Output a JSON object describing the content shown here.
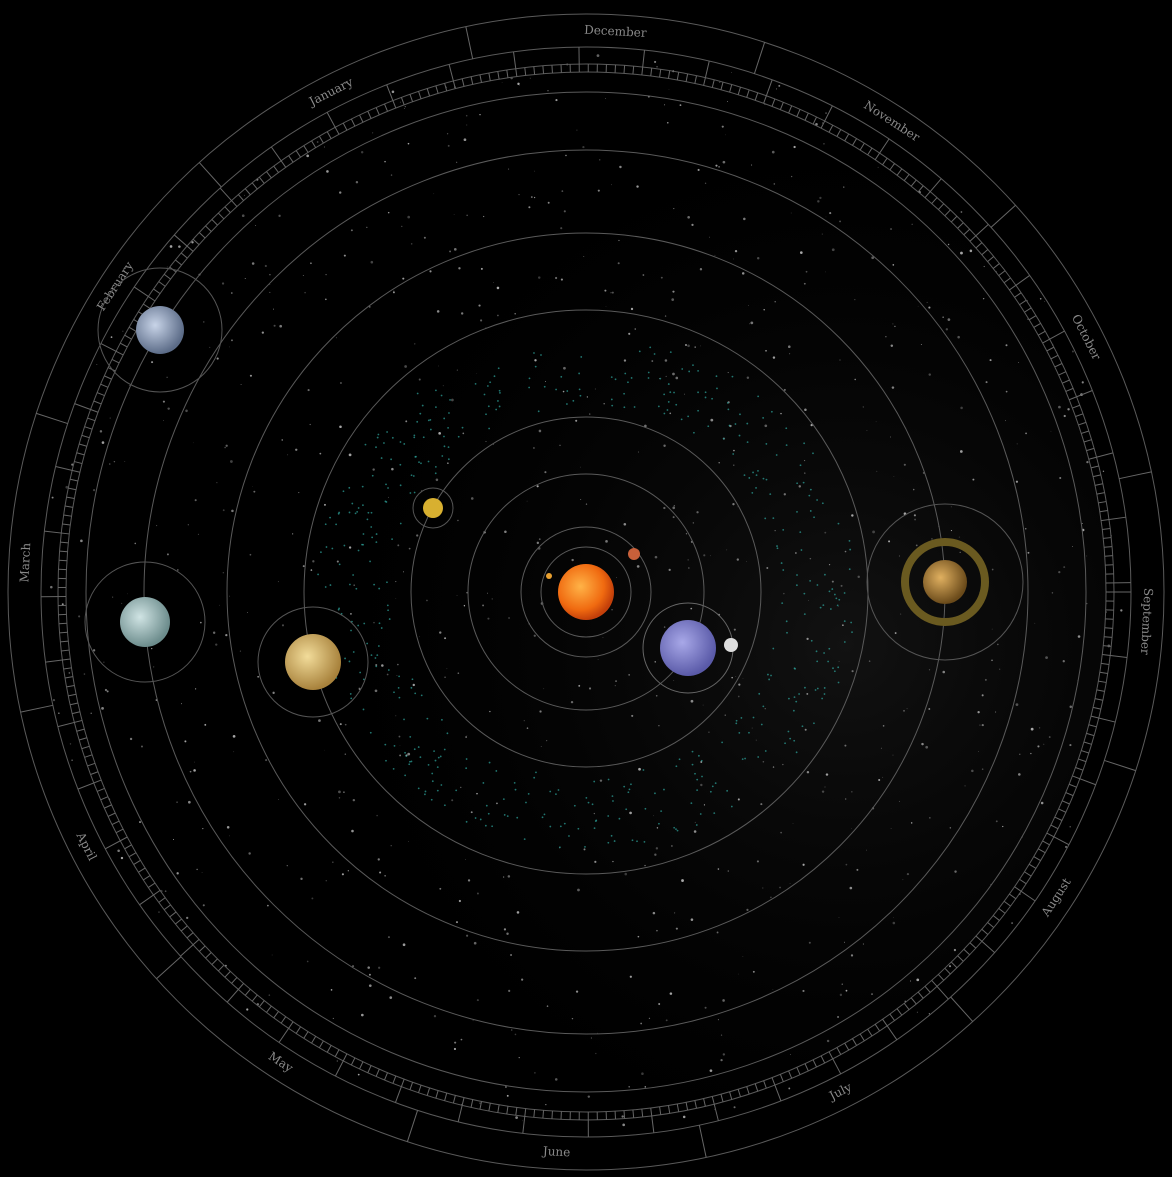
{
  "months": [
    "December",
    "January",
    "February",
    "March",
    "April",
    "May",
    "June",
    "July",
    "August",
    "September",
    "October",
    "November"
  ]
}
